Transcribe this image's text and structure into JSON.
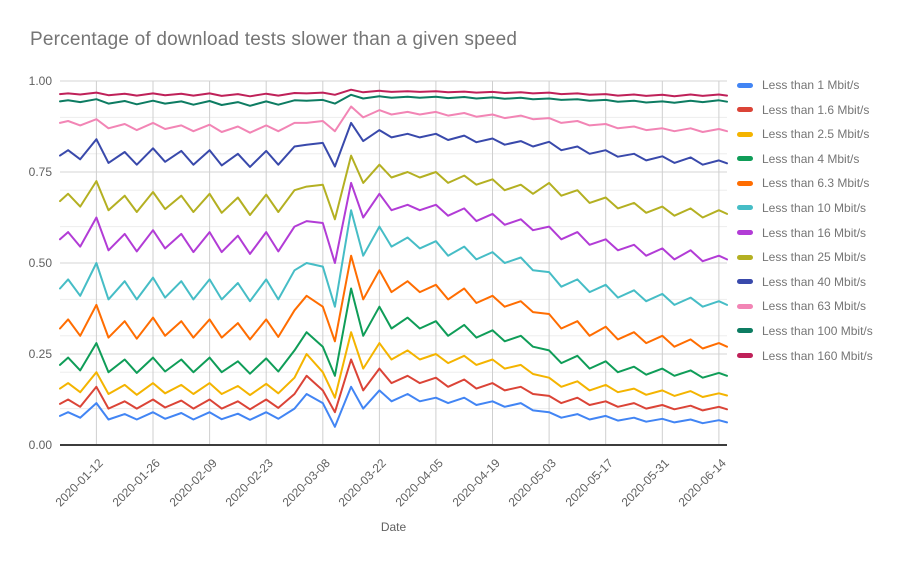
{
  "title": "Percentage of download tests slower than a given speed",
  "chart_data": {
    "type": "line",
    "title": "Percentage of download tests slower than a given speed",
    "xlabel": "Date",
    "ylabel": "",
    "ylim": [
      0,
      1
    ],
    "x_domain": [
      "2020-01-03",
      "2020-06-16"
    ],
    "legend_position": "right",
    "grid": {
      "major_y": [
        1.0,
        0.75,
        0.5,
        0.25
      ],
      "minor_y": [
        0.9,
        0.8,
        0.7,
        0.6,
        0.4,
        0.3,
        0.2,
        0.1
      ]
    },
    "y_ticks": [
      {
        "label": "1.00",
        "value": 1.0
      },
      {
        "label": "0.75",
        "value": 0.75
      },
      {
        "label": "0.50",
        "value": 0.5
      },
      {
        "label": "0.25",
        "value": 0.25
      },
      {
        "label": "0.00",
        "value": 0.0
      }
    ],
    "x_ticks": [
      "2020-01-12",
      "2020-01-26",
      "2020-02-09",
      "2020-02-23",
      "2020-03-08",
      "2020-03-22",
      "2020-04-05",
      "2020-04-19",
      "2020-05-03",
      "2020-05-17",
      "2020-05-31",
      "2020-06-14"
    ],
    "x": [
      "2020-01-03",
      "2020-01-05",
      "2020-01-08",
      "2020-01-12",
      "2020-01-15",
      "2020-01-19",
      "2020-01-22",
      "2020-01-26",
      "2020-01-29",
      "2020-02-02",
      "2020-02-05",
      "2020-02-09",
      "2020-02-12",
      "2020-02-16",
      "2020-02-19",
      "2020-02-23",
      "2020-02-26",
      "2020-03-01",
      "2020-03-04",
      "2020-03-08",
      "2020-03-11",
      "2020-03-15",
      "2020-03-18",
      "2020-03-22",
      "2020-03-25",
      "2020-03-29",
      "2020-04-01",
      "2020-04-05",
      "2020-04-08",
      "2020-04-12",
      "2020-04-15",
      "2020-04-19",
      "2020-04-22",
      "2020-04-26",
      "2020-04-29",
      "2020-05-03",
      "2020-05-06",
      "2020-05-10",
      "2020-05-13",
      "2020-05-17",
      "2020-05-20",
      "2020-05-24",
      "2020-05-27",
      "2020-05-31",
      "2020-06-03",
      "2020-06-07",
      "2020-06-10",
      "2020-06-14",
      "2020-06-16"
    ],
    "series": [
      {
        "name": "Less than 1 Mbit/s",
        "color": "#4285F4",
        "values": [
          0.08,
          0.09,
          0.075,
          0.115,
          0.07,
          0.085,
          0.07,
          0.09,
          0.072,
          0.088,
          0.07,
          0.09,
          0.071,
          0.086,
          0.069,
          0.09,
          0.072,
          0.1,
          0.14,
          0.115,
          0.05,
          0.16,
          0.1,
          0.15,
          0.12,
          0.14,
          0.12,
          0.13,
          0.115,
          0.13,
          0.11,
          0.12,
          0.105,
          0.115,
          0.095,
          0.09,
          0.075,
          0.085,
          0.07,
          0.08,
          0.067,
          0.075,
          0.064,
          0.072,
          0.062,
          0.07,
          0.06,
          0.068,
          0.062
        ]
      },
      {
        "name": "Less than 1.6 Mbit/s",
        "color": "#DB4437",
        "values": [
          0.113,
          0.125,
          0.105,
          0.16,
          0.1,
          0.12,
          0.1,
          0.125,
          0.103,
          0.122,
          0.1,
          0.125,
          0.1,
          0.12,
          0.098,
          0.125,
          0.102,
          0.14,
          0.19,
          0.15,
          0.09,
          0.235,
          0.15,
          0.21,
          0.17,
          0.19,
          0.17,
          0.185,
          0.16,
          0.18,
          0.155,
          0.17,
          0.15,
          0.16,
          0.14,
          0.135,
          0.115,
          0.13,
          0.11,
          0.12,
          0.105,
          0.115,
          0.1,
          0.11,
          0.098,
          0.108,
          0.095,
          0.105,
          0.098
        ]
      },
      {
        "name": "Less than 2.5 Mbit/s",
        "color": "#F4B400",
        "values": [
          0.155,
          0.17,
          0.145,
          0.2,
          0.14,
          0.165,
          0.138,
          0.17,
          0.142,
          0.165,
          0.14,
          0.17,
          0.14,
          0.162,
          0.137,
          0.168,
          0.142,
          0.185,
          0.25,
          0.2,
          0.13,
          0.31,
          0.21,
          0.28,
          0.235,
          0.26,
          0.235,
          0.25,
          0.225,
          0.245,
          0.22,
          0.235,
          0.21,
          0.22,
          0.195,
          0.185,
          0.16,
          0.175,
          0.15,
          0.165,
          0.145,
          0.155,
          0.138,
          0.15,
          0.135,
          0.148,
          0.132,
          0.142,
          0.136
        ]
      },
      {
        "name": "Less than 4 Mbit/s",
        "color": "#0F9D58",
        "values": [
          0.22,
          0.24,
          0.205,
          0.28,
          0.2,
          0.235,
          0.198,
          0.24,
          0.202,
          0.235,
          0.2,
          0.24,
          0.2,
          0.23,
          0.196,
          0.238,
          0.202,
          0.26,
          0.31,
          0.27,
          0.19,
          0.43,
          0.3,
          0.38,
          0.32,
          0.35,
          0.32,
          0.34,
          0.3,
          0.33,
          0.295,
          0.315,
          0.285,
          0.3,
          0.27,
          0.26,
          0.225,
          0.245,
          0.21,
          0.23,
          0.2,
          0.215,
          0.193,
          0.21,
          0.19,
          0.205,
          0.185,
          0.198,
          0.19
        ]
      },
      {
        "name": "Less than 6.3 Mbit/s",
        "color": "#FF6D01",
        "values": [
          0.32,
          0.345,
          0.3,
          0.385,
          0.295,
          0.34,
          0.292,
          0.35,
          0.3,
          0.34,
          0.295,
          0.345,
          0.295,
          0.335,
          0.29,
          0.345,
          0.297,
          0.37,
          0.41,
          0.38,
          0.285,
          0.52,
          0.4,
          0.48,
          0.42,
          0.45,
          0.42,
          0.44,
          0.4,
          0.43,
          0.39,
          0.41,
          0.38,
          0.395,
          0.365,
          0.36,
          0.32,
          0.34,
          0.3,
          0.325,
          0.29,
          0.31,
          0.28,
          0.3,
          0.27,
          0.29,
          0.265,
          0.28,
          0.27
        ]
      },
      {
        "name": "Less than 10 Mbit/s",
        "color": "#46BDC6",
        "values": [
          0.43,
          0.455,
          0.41,
          0.5,
          0.4,
          0.45,
          0.4,
          0.46,
          0.405,
          0.45,
          0.4,
          0.455,
          0.4,
          0.445,
          0.395,
          0.455,
          0.4,
          0.48,
          0.5,
          0.49,
          0.38,
          0.645,
          0.52,
          0.6,
          0.545,
          0.57,
          0.54,
          0.56,
          0.52,
          0.545,
          0.51,
          0.53,
          0.5,
          0.515,
          0.48,
          0.475,
          0.435,
          0.455,
          0.42,
          0.44,
          0.405,
          0.425,
          0.395,
          0.415,
          0.385,
          0.405,
          0.38,
          0.395,
          0.385
        ]
      },
      {
        "name": "Less than 16 Mbit/s",
        "color": "#B23CD6",
        "values": [
          0.565,
          0.585,
          0.545,
          0.625,
          0.535,
          0.58,
          0.532,
          0.59,
          0.54,
          0.58,
          0.53,
          0.585,
          0.53,
          0.575,
          0.525,
          0.585,
          0.532,
          0.6,
          0.615,
          0.61,
          0.5,
          0.72,
          0.625,
          0.69,
          0.645,
          0.66,
          0.645,
          0.66,
          0.63,
          0.65,
          0.615,
          0.635,
          0.605,
          0.62,
          0.59,
          0.6,
          0.565,
          0.585,
          0.55,
          0.565,
          0.535,
          0.55,
          0.52,
          0.54,
          0.51,
          0.535,
          0.505,
          0.52,
          0.51
        ]
      },
      {
        "name": "Less than 25 Mbit/s",
        "color": "#B4B022",
        "values": [
          0.67,
          0.69,
          0.655,
          0.725,
          0.645,
          0.685,
          0.64,
          0.695,
          0.648,
          0.685,
          0.64,
          0.69,
          0.638,
          0.68,
          0.632,
          0.688,
          0.64,
          0.7,
          0.71,
          0.715,
          0.62,
          0.795,
          0.72,
          0.77,
          0.735,
          0.75,
          0.735,
          0.75,
          0.72,
          0.74,
          0.715,
          0.73,
          0.7,
          0.715,
          0.69,
          0.72,
          0.685,
          0.7,
          0.665,
          0.68,
          0.65,
          0.665,
          0.638,
          0.655,
          0.63,
          0.65,
          0.625,
          0.645,
          0.635
        ]
      },
      {
        "name": "Less than 40 Mbit/s",
        "color": "#3949AB",
        "values": [
          0.795,
          0.81,
          0.785,
          0.84,
          0.775,
          0.805,
          0.77,
          0.815,
          0.778,
          0.808,
          0.77,
          0.81,
          0.768,
          0.8,
          0.764,
          0.808,
          0.77,
          0.82,
          0.825,
          0.83,
          0.765,
          0.885,
          0.835,
          0.865,
          0.845,
          0.855,
          0.845,
          0.855,
          0.838,
          0.85,
          0.832,
          0.842,
          0.825,
          0.835,
          0.82,
          0.833,
          0.81,
          0.82,
          0.8,
          0.81,
          0.792,
          0.8,
          0.782,
          0.793,
          0.775,
          0.79,
          0.77,
          0.782,
          0.774
        ]
      },
      {
        "name": "Less than 63 Mbit/s",
        "color": "#F285B5",
        "values": [
          0.885,
          0.89,
          0.878,
          0.895,
          0.87,
          0.882,
          0.865,
          0.885,
          0.868,
          0.878,
          0.862,
          0.88,
          0.86,
          0.875,
          0.858,
          0.878,
          0.862,
          0.885,
          0.885,
          0.89,
          0.862,
          0.93,
          0.9,
          0.92,
          0.908,
          0.915,
          0.908,
          0.915,
          0.905,
          0.912,
          0.902,
          0.908,
          0.898,
          0.905,
          0.895,
          0.898,
          0.885,
          0.89,
          0.878,
          0.882,
          0.87,
          0.875,
          0.865,
          0.87,
          0.862,
          0.87,
          0.86,
          0.868,
          0.862
        ]
      },
      {
        "name": "Less than 100 Mbit/s",
        "color": "#0D7C62",
        "values": [
          0.944,
          0.947,
          0.942,
          0.95,
          0.938,
          0.945,
          0.936,
          0.946,
          0.938,
          0.944,
          0.935,
          0.945,
          0.934,
          0.942,
          0.932,
          0.944,
          0.935,
          0.947,
          0.946,
          0.948,
          0.938,
          0.962,
          0.952,
          0.958,
          0.954,
          0.957,
          0.954,
          0.957,
          0.953,
          0.956,
          0.952,
          0.955,
          0.951,
          0.954,
          0.95,
          0.952,
          0.948,
          0.95,
          0.946,
          0.948,
          0.943,
          0.946,
          0.941,
          0.944,
          0.94,
          0.946,
          0.942,
          0.947,
          0.943
        ]
      },
      {
        "name": "Less than 160 Mbit/s",
        "color": "#BF2159",
        "values": [
          0.964,
          0.966,
          0.963,
          0.968,
          0.961,
          0.965,
          0.96,
          0.966,
          0.961,
          0.965,
          0.96,
          0.966,
          0.959,
          0.964,
          0.958,
          0.965,
          0.96,
          0.967,
          0.966,
          0.968,
          0.962,
          0.976,
          0.969,
          0.973,
          0.97,
          0.972,
          0.97,
          0.972,
          0.969,
          0.971,
          0.968,
          0.97,
          0.967,
          0.969,
          0.966,
          0.968,
          0.964,
          0.966,
          0.962,
          0.964,
          0.96,
          0.963,
          0.959,
          0.962,
          0.958,
          0.963,
          0.959,
          0.963,
          0.96
        ]
      }
    ]
  }
}
